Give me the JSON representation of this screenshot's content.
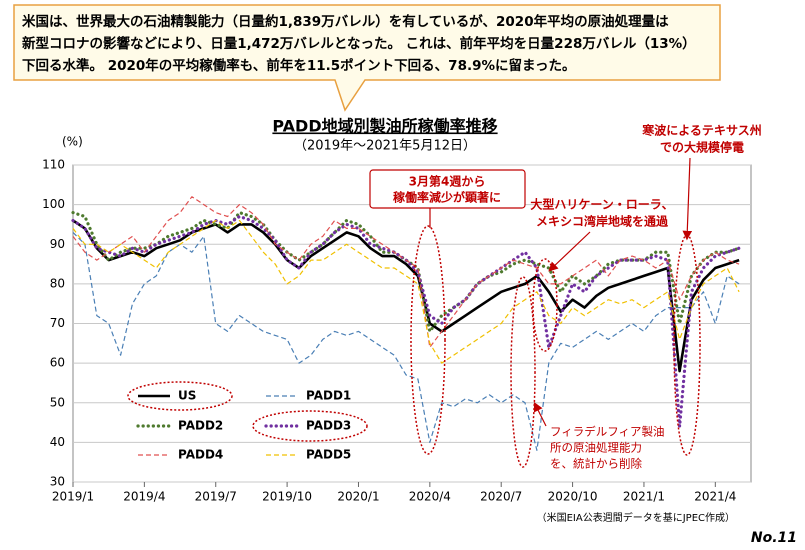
{
  "callout": {
    "lines": [
      "米国は、世界最大の石油精製能力（日量約1,839万バレル）を有しているが、2020年平均の原油処理量は",
      "新型コロナの影響などにより、日量1,472万バレルとなった。 これは、前年平均を日量228万バレル（13%）",
      "下回る水準。 2020年の平均稼働率も、前年を11.5ポイント下回る、78.9%に留まった。"
    ]
  },
  "chart_data": {
    "type": "line",
    "title": "PADD地域別製油所稼働率推移",
    "subtitle": "（2019年～2021年5月12日）",
    "y_label": "(%)",
    "categories": [
      "2019/1",
      null,
      null,
      null,
      null,
      null,
      "2019/4",
      null,
      null,
      null,
      null,
      null,
      "2019/7",
      null,
      null,
      null,
      null,
      null,
      "2019/10",
      null,
      null,
      null,
      null,
      null,
      "2020/1",
      null,
      null,
      null,
      null,
      null,
      "2020/4",
      null,
      null,
      null,
      null,
      null,
      "2020/7",
      null,
      null,
      null,
      null,
      null,
      "2020/10",
      null,
      null,
      null,
      null,
      null,
      "2021/1",
      null,
      null,
      null,
      null,
      null,
      "2021/4",
      null,
      null
    ],
    "ylim": [
      30,
      110
    ],
    "yticks": [
      30,
      40,
      50,
      60,
      70,
      80,
      90,
      100,
      110
    ],
    "grid": true,
    "series": [
      {
        "name": "US",
        "color": "#000000",
        "line_style": "solid",
        "values": [
          96,
          94,
          89,
          86,
          87,
          88,
          87,
          89,
          90,
          91,
          93,
          94,
          95,
          93,
          95,
          95,
          93,
          90,
          86,
          84,
          87,
          89,
          91,
          93,
          92,
          89,
          87,
          87,
          85,
          82,
          70,
          68,
          70,
          72,
          74,
          76,
          78,
          79,
          80,
          82,
          78,
          73,
          76,
          74,
          77,
          79,
          80,
          81,
          82,
          83,
          84,
          58,
          76,
          81,
          84,
          85,
          86
        ]
      },
      {
        "name": "PADD1",
        "color": "#4a7fb5",
        "line_style": "dashed",
        "values": [
          93,
          90,
          72,
          70,
          62,
          75,
          80,
          82,
          88,
          90,
          88,
          92,
          70,
          68,
          72,
          70,
          68,
          67,
          66,
          60,
          62,
          66,
          68,
          67,
          68,
          66,
          64,
          62,
          57,
          56,
          40,
          50,
          49,
          51,
          50,
          52,
          50,
          52,
          50,
          38,
          60,
          65,
          64,
          66,
          68,
          66,
          68,
          70,
          68,
          72,
          74,
          74,
          74,
          78,
          70,
          82,
          80
        ]
      },
      {
        "name": "PADD2",
        "color": "#4e7a2e",
        "line_style": "dotted",
        "values": [
          98,
          97,
          90,
          86,
          88,
          89,
          89,
          90,
          92,
          93,
          94,
          96,
          95,
          94,
          98,
          97,
          95,
          91,
          88,
          86,
          88,
          90,
          93,
          96,
          95,
          92,
          88,
          88,
          86,
          84,
          68,
          72,
          74,
          76,
          80,
          82,
          83,
          85,
          86,
          85,
          84,
          78,
          82,
          80,
          82,
          85,
          86,
          86,
          86,
          88,
          88,
          70,
          82,
          86,
          88,
          88,
          89
        ]
      },
      {
        "name": "PADD3",
        "color": "#7030a0",
        "line_style": "dotted",
        "values": [
          96,
          94,
          89,
          88,
          87,
          89,
          88,
          90,
          91,
          92,
          93,
          95,
          96,
          95,
          97,
          96,
          94,
          91,
          86,
          84,
          88,
          90,
          93,
          95,
          94,
          90,
          89,
          88,
          86,
          83,
          72,
          70,
          74,
          76,
          80,
          82,
          84,
          86,
          88,
          84,
          64,
          72,
          80,
          78,
          82,
          84,
          86,
          86,
          86,
          87,
          86,
          44,
          78,
          84,
          87,
          88,
          89
        ]
      },
      {
        "name": "PADD4",
        "color": "#e05050",
        "line_style": "dashed",
        "values": [
          92,
          88,
          86,
          88,
          90,
          92,
          88,
          92,
          96,
          98,
          102,
          100,
          98,
          97,
          100,
          98,
          95,
          90,
          88,
          86,
          90,
          92,
          96,
          94,
          94,
          92,
          90,
          88,
          86,
          84,
          64,
          68,
          72,
          76,
          80,
          82,
          84,
          86,
          85,
          84,
          80,
          80,
          82,
          84,
          86,
          82,
          86,
          87,
          86,
          84,
          86,
          76,
          82,
          86,
          88,
          86,
          85
        ]
      },
      {
        "name": "PADD5",
        "color": "#f0c000",
        "line_style": "dashed",
        "values": [
          94,
          90,
          90,
          88,
          90,
          88,
          86,
          84,
          88,
          90,
          92,
          94,
          96,
          94,
          96,
          92,
          88,
          85,
          80,
          82,
          86,
          86,
          88,
          90,
          88,
          86,
          84,
          84,
          82,
          80,
          65,
          60,
          62,
          64,
          66,
          68,
          70,
          74,
          76,
          78,
          72,
          70,
          74,
          72,
          74,
          76,
          75,
          76,
          74,
          76,
          78,
          66,
          74,
          80,
          82,
          84,
          78
        ]
      }
    ],
    "annotations": [
      {
        "lines": [
          "3月第4週から",
          "稼働率減少が顕著に"
        ]
      },
      {
        "lines": [
          "大型ハリケーン・ローラ、",
          "メキシコ湾岸地域を通過"
        ]
      },
      {
        "lines": [
          "寒波によるテキサス州",
          "での大規模停電"
        ]
      },
      {
        "lines": [
          "フィラデルフィア製油",
          "所の原油処理能力",
          "を、統計から削除"
        ]
      }
    ],
    "source": "（米国EIA公表週間データを基にJPEC作成）"
  },
  "page_number": "No.11"
}
